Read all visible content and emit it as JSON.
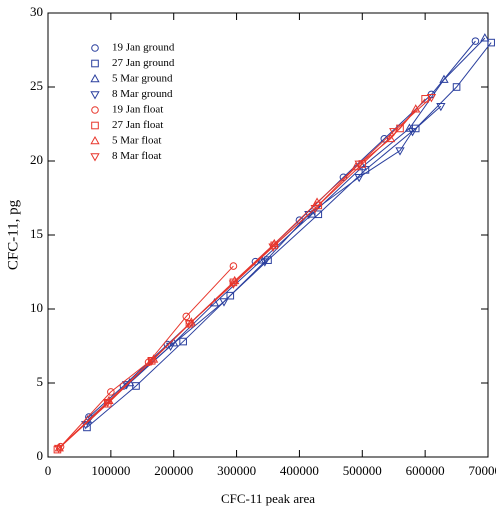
{
  "chart_data": {
    "type": "scatter",
    "xlabel": "CFC-11 peak area",
    "ylabel": "CFC-11, pg",
    "xlim": [
      0,
      700000
    ],
    "ylim": [
      0,
      30
    ],
    "xticks": [
      0,
      100000,
      200000,
      300000,
      400000,
      500000,
      600000,
      700000
    ],
    "yticks": [
      0,
      5,
      10,
      15,
      20,
      25,
      30
    ],
    "legend": "upper left",
    "lines": true,
    "series": [
      {
        "name": "19 Jan ground",
        "color": "#2a3f9e",
        "marker": "circle",
        "x": [
          65000,
          120000,
          190000,
          330000,
          400000,
          470000,
          535000,
          610000,
          680000
        ],
        "values": [
          2.7,
          4.8,
          7.6,
          13.2,
          16.0,
          18.9,
          21.5,
          24.5,
          28.1
        ]
      },
      {
        "name": "27 Jan ground",
        "color": "#2a3f9e",
        "marker": "square",
        "x": [
          62000,
          140000,
          215000,
          290000,
          350000,
          430000,
          505000,
          585000,
          650000,
          705000
        ],
        "values": [
          2.0,
          4.8,
          7.8,
          10.9,
          13.3,
          16.4,
          19.4,
          22.2,
          25.0,
          28.0
        ]
      },
      {
        "name": "5 Mar ground",
        "color": "#2a3f9e",
        "marker": "triangle",
        "x": [
          63000,
          130000,
          200000,
          265000,
          340000,
          420000,
          500000,
          575000,
          630000,
          695000
        ],
        "values": [
          2.5,
          5.0,
          7.7,
          10.4,
          13.3,
          16.4,
          19.6,
          22.2,
          25.5,
          28.3
        ]
      },
      {
        "name": "8 Mar ground",
        "color": "#2a3f9e",
        "marker": "triangle-down",
        "x": [
          60000,
          125000,
          195000,
          280000,
          345000,
          415000,
          495000,
          560000,
          580000,
          625000
        ],
        "values": [
          2.2,
          4.9,
          7.5,
          10.5,
          13.2,
          16.4,
          18.9,
          20.7,
          22.0,
          23.7
        ]
      },
      {
        "name": "19 Jan float",
        "color": "#e8352b",
        "marker": "circle",
        "x": [
          20000,
          100000,
          160000,
          220000,
          295000
        ],
        "values": [
          0.7,
          4.4,
          6.4,
          9.5,
          12.9
        ]
      },
      {
        "name": "27 Jan float",
        "color": "#e8352b",
        "marker": "square",
        "x": [
          15000,
          95000,
          165000,
          225000,
          295000,
          360000,
          430000,
          500000,
          560000,
          600000
        ],
        "values": [
          0.5,
          3.6,
          6.5,
          9.0,
          11.8,
          14.3,
          17.0,
          19.8,
          22.2,
          24.2
        ]
      },
      {
        "name": "5 Mar float",
        "color": "#e8352b",
        "marker": "triangle",
        "x": [
          18000,
          97000,
          168000,
          228000,
          297000,
          360000,
          428000,
          490000,
          545000,
          585000
        ],
        "values": [
          0.6,
          3.8,
          6.6,
          9.1,
          11.9,
          14.4,
          17.2,
          19.6,
          21.5,
          23.5
        ]
      },
      {
        "name": "8 Mar float",
        "color": "#e8352b",
        "marker": "triangle-down",
        "x": [
          17000,
          95000,
          165000,
          225000,
          295000,
          358000,
          425000,
          495000,
          550000,
          610000
        ],
        "values": [
          0.6,
          3.7,
          6.5,
          9.0,
          11.7,
          14.2,
          16.8,
          19.8,
          22.0,
          24.3
        ]
      }
    ]
  }
}
